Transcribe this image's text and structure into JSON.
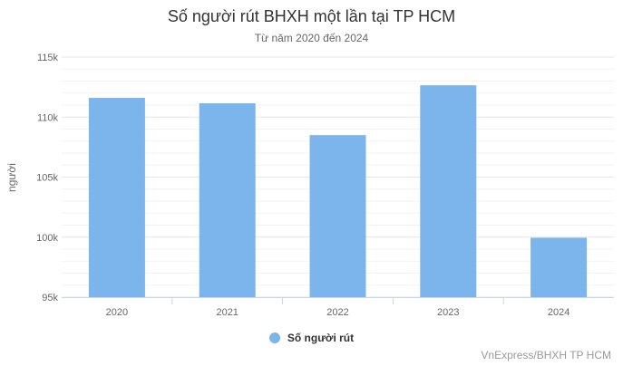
{
  "chart_data": {
    "type": "bar",
    "title": "Số người rút BHXH một lần tại TP HCM",
    "subtitle": "Từ năm 2020 đến 2024",
    "xlabel": "",
    "ylabel": "người",
    "categories": [
      "2020",
      "2021",
      "2022",
      "2023",
      "2024"
    ],
    "series": [
      {
        "name": "Số người rút",
        "values": [
          111600,
          111150,
          108500,
          112650,
          99950
        ],
        "color": "#7cb5ec"
      }
    ],
    "ylim": [
      95000,
      115000
    ],
    "yticks": [
      95000,
      100000,
      105000,
      110000,
      115000
    ],
    "ytick_labels": [
      "95k",
      "100k",
      "105k",
      "110k",
      "115k"
    ],
    "grid": true,
    "legend": "bottom-center"
  },
  "credits": "VnExpress/BHXH TP HCM"
}
